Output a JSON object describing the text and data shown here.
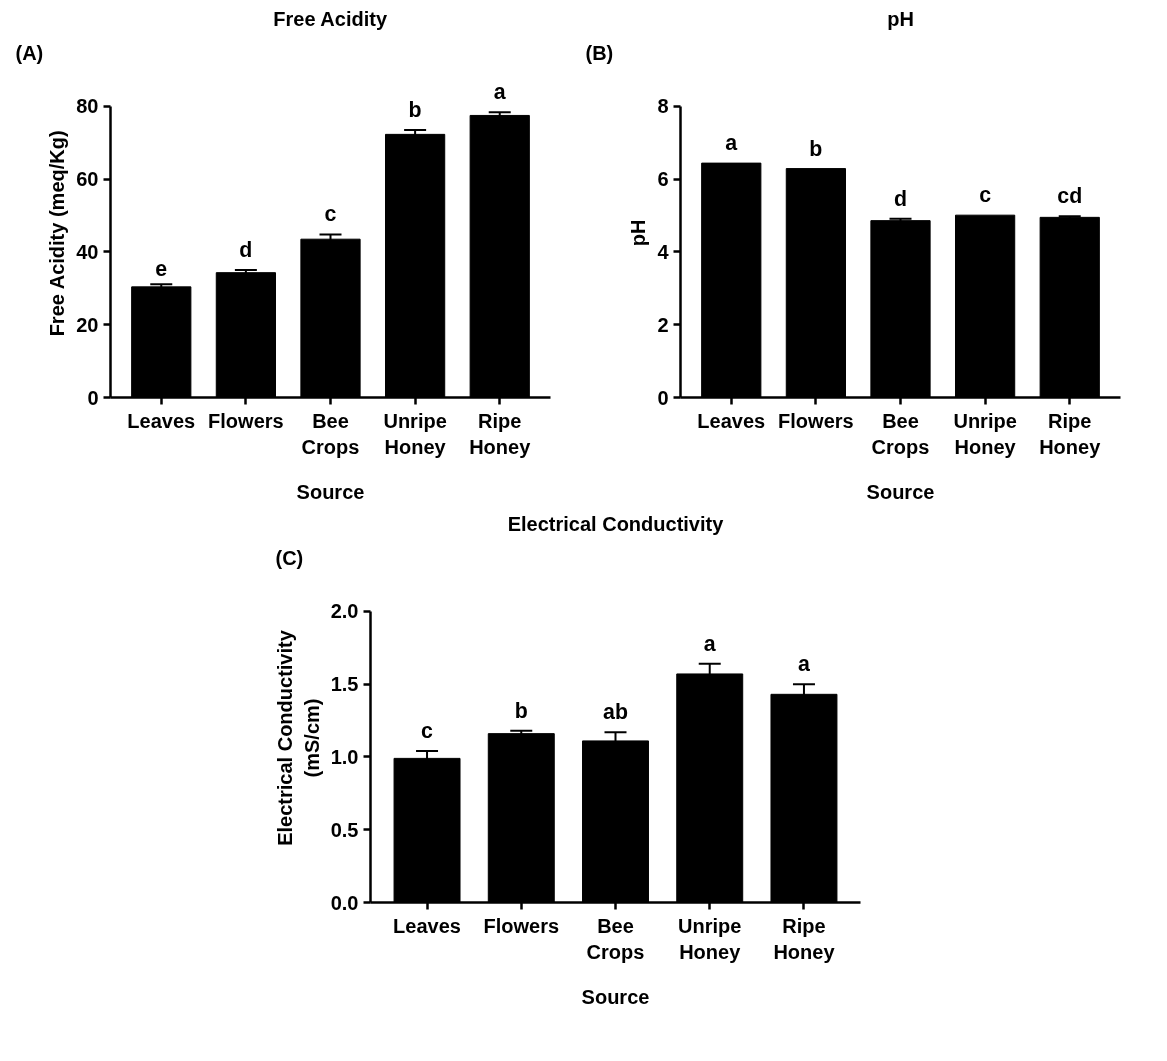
{
  "chart_data": [
    {
      "type": "bar",
      "title": "Free Acidity",
      "xlabel": "Source",
      "ylabel": "Free Acidity (meq/Kg)",
      "categories": [
        "Leaves",
        "Flowers",
        "Bee\nCrops",
        "Unripe\nHoney",
        "Ripe\nHoney"
      ],
      "values": [
        30.4,
        34.3,
        43.5,
        72.3,
        77.5
      ],
      "errors": [
        0.7,
        0.7,
        1.3,
        1.2,
        0.9
      ],
      "color": "#000000",
      "ylim": [
        0,
        80
      ],
      "yticks": [
        0,
        20,
        40,
        60,
        80
      ],
      "grid": false,
      "annotations": [
        "(A)",
        "e",
        "d",
        "c",
        "b",
        "a"
      ]
    },
    {
      "type": "bar",
      "title": "pH",
      "xlabel": "Source",
      "ylabel": "pH",
      "categories": [
        "Leaves",
        "Flowers",
        "Bee\nCrops",
        "Unripe\nHoney",
        "Ripe\nHoney"
      ],
      "values": [
        6.44,
        6.29,
        4.86,
        5.01,
        4.95
      ],
      "errors": [
        null,
        null,
        0.05,
        null,
        0.03
      ],
      "color": "#000000",
      "ylim": [
        0,
        8
      ],
      "yticks": [
        0,
        2,
        4,
        6,
        8
      ],
      "grid": false,
      "annotations": [
        "(B)",
        "a",
        "b",
        "d",
        "c",
        "cd"
      ]
    },
    {
      "type": "bar",
      "title": "Electrical Conductivity",
      "xlabel": "Source",
      "ylabel": "Electrical Conductivity\n(mS/cm)",
      "categories": [
        "Leaves",
        "Flowers",
        "Bee\nCrops",
        "Unripe\nHoney",
        "Ripe\nHoney"
      ],
      "values": [
        0.99,
        1.16,
        1.11,
        1.57,
        1.43
      ],
      "errors": [
        0.05,
        0.02,
        0.06,
        0.07,
        0.07
      ],
      "color": "#000000",
      "ylim": [
        0,
        2.0
      ],
      "yticks": [
        {
          "value": 0,
          "label": "0.0"
        },
        0.5,
        {
          "value": 1,
          "label": "1.0"
        },
        1.5,
        {
          "value": 2,
          "label": "2.0"
        }
      ],
      "grid": false,
      "annotations": [
        "(C)",
        "c",
        "b",
        "ab",
        "a",
        "a"
      ]
    }
  ]
}
